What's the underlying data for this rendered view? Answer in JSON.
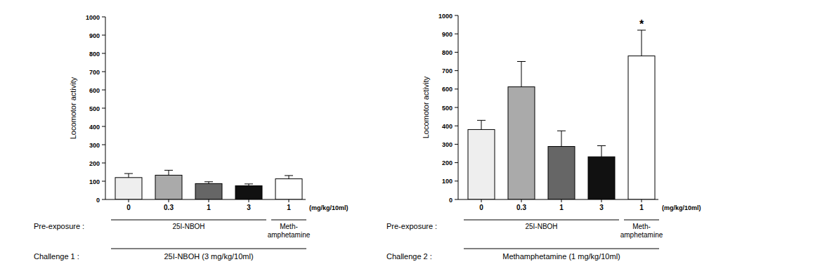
{
  "chart_data": [
    {
      "type": "bar",
      "y_label": "Locomotor activity",
      "categories": [
        "0",
        "0.3",
        "1",
        "3",
        "1"
      ],
      "x_unit": "(mg/kg/10ml)",
      "values": [
        120,
        133,
        87,
        75,
        113
      ],
      "errors": [
        22,
        27,
        10,
        10,
        18
      ],
      "colors": [
        "#eeeeee",
        "#aaaaaa",
        "#666666",
        "#111111",
        "#ffffff"
      ],
      "ylim": [
        0,
        1000
      ],
      "yticks": [
        0,
        100,
        200,
        300,
        400,
        500,
        600,
        700,
        800,
        900,
        1000
      ],
      "pre_exposure": {
        "label": "Pre-exposure :",
        "groups": [
          {
            "lines": [
              "25I-NBOH"
            ],
            "bars": [
              0,
              3
            ]
          },
          {
            "lines": [
              "Meth-",
              "amphetamine"
            ],
            "bars": [
              4,
              4
            ]
          }
        ]
      },
      "challenge": {
        "label": "Challenge 1 :",
        "text": "25I-NBOH (3 mg/kg/10ml)"
      },
      "annotations": []
    },
    {
      "type": "bar",
      "y_label": "Locomotor activity",
      "categories": [
        "0",
        "0.3",
        "1",
        "3",
        "1"
      ],
      "x_unit": "(mg/kg/10ml)",
      "values": [
        380,
        612,
        288,
        232,
        780
      ],
      "errors": [
        50,
        138,
        85,
        60,
        140
      ],
      "colors": [
        "#eeeeee",
        "#aaaaaa",
        "#666666",
        "#111111",
        "#ffffff"
      ],
      "ylim": [
        0,
        1000
      ],
      "yticks": [
        0,
        100,
        200,
        300,
        400,
        500,
        600,
        700,
        800,
        900,
        1000
      ],
      "pre_exposure": {
        "label": "Pre-exposure :",
        "groups": [
          {
            "lines": [
              "25I-NBOH"
            ],
            "bars": [
              0,
              3
            ]
          },
          {
            "lines": [
              "Meth-",
              "amphetamine"
            ],
            "bars": [
              4,
              4
            ]
          }
        ]
      },
      "challenge": {
        "label": "Challenge 2 :",
        "text": "Methamphetamine (1 mg/kg/10ml)"
      },
      "annotations": [
        {
          "text": "*",
          "category": 4
        }
      ]
    }
  ]
}
